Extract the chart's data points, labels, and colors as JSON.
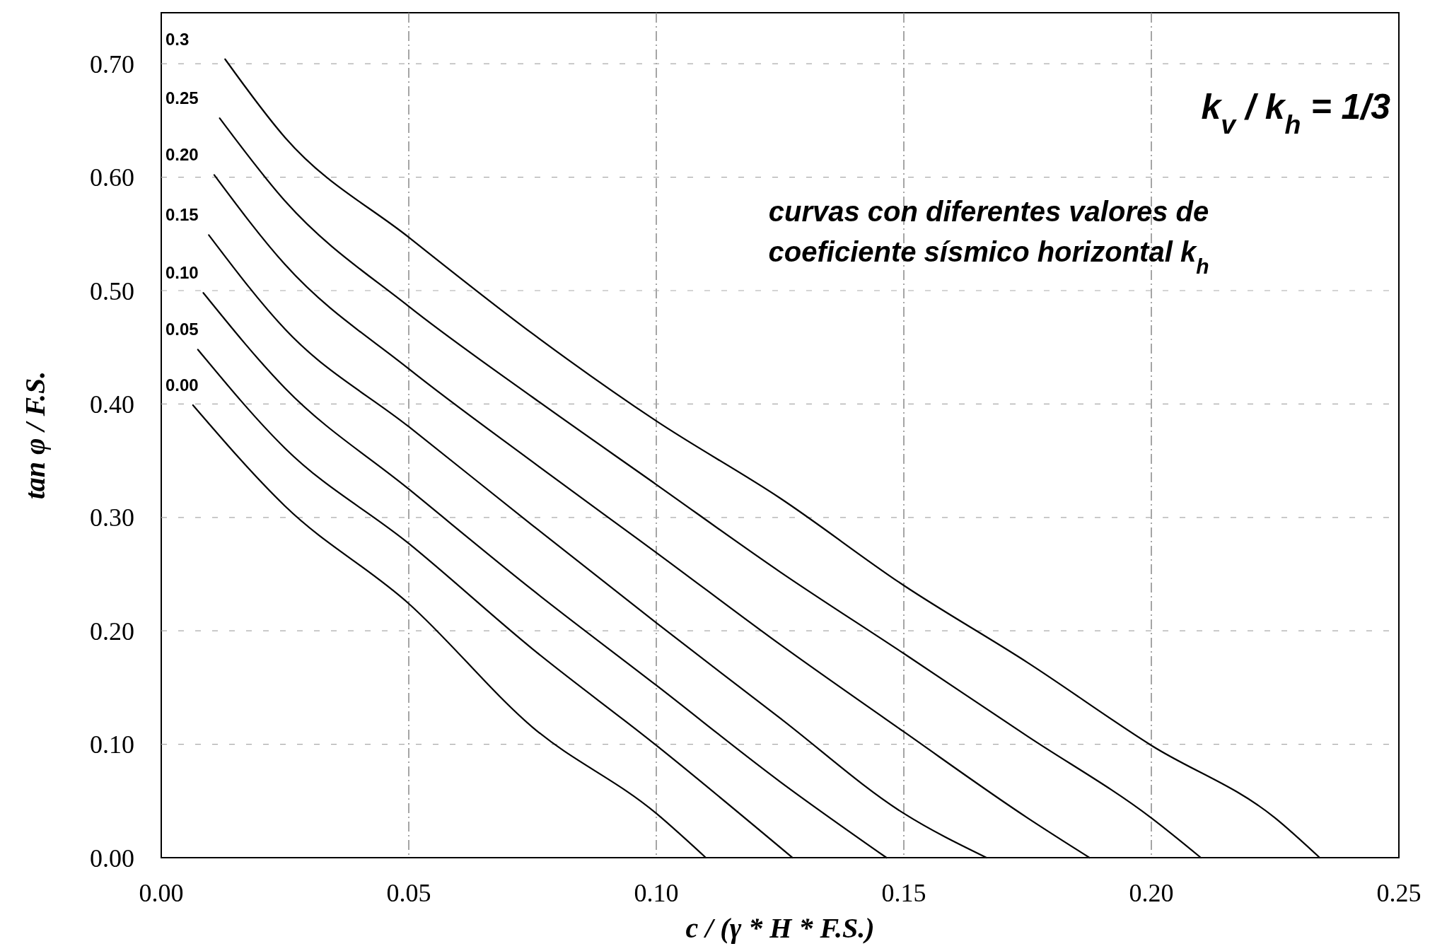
{
  "chart_data": {
    "type": "line",
    "xlabel": "c / (γ * H * F.S.)",
    "ylabel": "tan φ / F.S.",
    "annotations": [
      "k$_{v}$ / k$_{h}$ = 1/3",
      "curvas con diferentes valores de coeficiente sísmico horizontal k$_{h}$"
    ],
    "xlim": [
      0,
      0.25
    ],
    "ylim": [
      0,
      0.745
    ],
    "xticks": [
      {
        "value": 0,
        "label": "0.00"
      },
      {
        "value": 0.05,
        "label": "0.05"
      },
      {
        "value": 0.1,
        "label": "0.10"
      },
      {
        "value": 0.15,
        "label": "0.15"
      },
      {
        "value": 0.2,
        "label": "0.20"
      },
      {
        "value": 0.25,
        "label": "0.25"
      }
    ],
    "yticks": [
      {
        "value": 0,
        "label": "0.00"
      },
      {
        "value": 0.1,
        "label": "0.10"
      },
      {
        "value": 0.2,
        "label": "0.20"
      },
      {
        "value": 0.3,
        "label": "0.30"
      },
      {
        "value": 0.4,
        "label": "0.40"
      },
      {
        "value": 0.5,
        "label": "0.50"
      },
      {
        "value": 0.6,
        "label": "0.60"
      },
      {
        "value": 0.7,
        "label": "0.70"
      }
    ],
    "grid": true,
    "marker": "none",
    "line_style": "solid",
    "series": [
      {
        "name": "0.3",
        "color": "#000000",
        "x": [
          0.0129,
          0.025,
          0.05,
          0.075,
          0.1,
          0.125,
          0.15,
          0.175,
          0.2,
          0.225,
          0.234
        ],
        "values": [
          0.704,
          0.635,
          0.547,
          0.462,
          0.385,
          0.317,
          0.24,
          0.172,
          0.099,
          0.035,
          0
        ]
      },
      {
        "name": "0.25",
        "color": "#000000",
        "x": [
          0.0118,
          0.025,
          0.05,
          0.075,
          0.1,
          0.125,
          0.15,
          0.175,
          0.2,
          0.21
        ],
        "values": [
          0.652,
          0.579,
          0.486,
          0.406,
          0.329,
          0.252,
          0.18,
          0.107,
          0.035,
          0
        ]
      },
      {
        "name": "0.20",
        "color": "#000000",
        "x": [
          0.0107,
          0.025,
          0.05,
          0.075,
          0.1,
          0.125,
          0.15,
          0.175,
          0.1875
        ],
        "values": [
          0.602,
          0.523,
          0.431,
          0.349,
          0.269,
          0.188,
          0.111,
          0.035,
          0
        ]
      },
      {
        "name": "0.15",
        "color": "#000000",
        "x": [
          0.0096,
          0.025,
          0.05,
          0.075,
          0.1,
          0.125,
          0.15,
          0.1667
        ],
        "values": [
          0.549,
          0.466,
          0.38,
          0.293,
          0.207,
          0.123,
          0.039,
          0
        ]
      },
      {
        "name": "0.10",
        "color": "#000000",
        "x": [
          0.0085,
          0.025,
          0.05,
          0.075,
          0.1,
          0.125,
          0.1465
        ],
        "values": [
          0.498,
          0.414,
          0.325,
          0.236,
          0.152,
          0.067,
          0
        ]
      },
      {
        "name": "0.05",
        "color": "#000000",
        "x": [
          0.0074,
          0.025,
          0.05,
          0.075,
          0.1,
          0.1275
        ],
        "values": [
          0.448,
          0.361,
          0.277,
          0.184,
          0.099,
          0
        ]
      },
      {
        "name": "0.00",
        "color": "#000000",
        "x": [
          0.0064,
          0.025,
          0.05,
          0.075,
          0.1,
          0.11
        ],
        "values": [
          0.399,
          0.31,
          0.224,
          0.115,
          0.039,
          0
        ]
      }
    ]
  }
}
